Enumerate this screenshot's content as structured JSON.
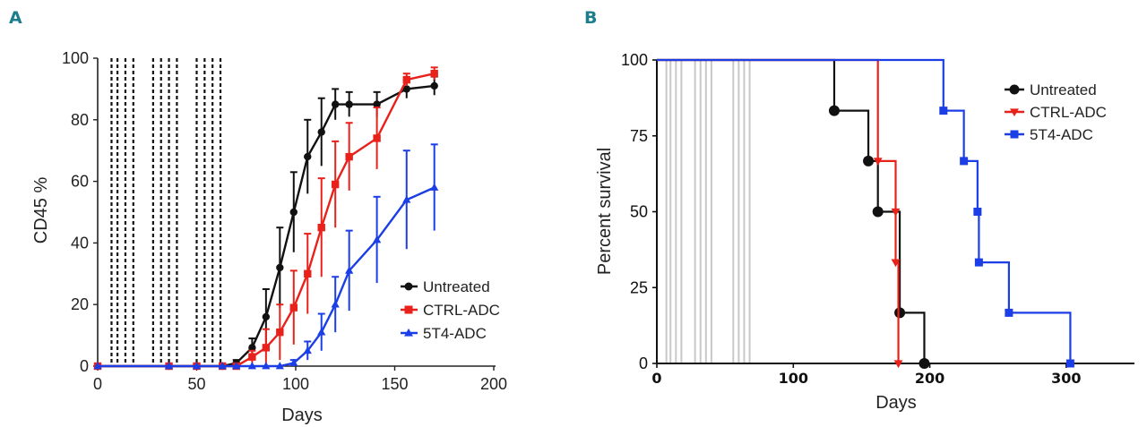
{
  "chart_data": [
    {
      "panel": "A",
      "type": "line",
      "title": "",
      "xlabel": "Days",
      "ylabel": "CD45 %",
      "xlim": [
        0,
        200
      ],
      "ylim": [
        0,
        100
      ],
      "xticks": [
        "0",
        "50",
        "100",
        "150",
        "200"
      ],
      "yticks": [
        "0",
        "20",
        "40",
        "60",
        "80",
        "100"
      ],
      "treatment_days": [
        7,
        10,
        14,
        18,
        28,
        32,
        36,
        40,
        50,
        54,
        58,
        62
      ],
      "legend_position": "bottom-right",
      "series": [
        {
          "name": "Untreated",
          "color": "#111111",
          "marker": "circle",
          "x": [
            0,
            36,
            50,
            63,
            70,
            78,
            85,
            92,
            99,
            106,
            113,
            120,
            127,
            141,
            156,
            170
          ],
          "y": [
            0,
            0,
            0,
            0,
            1,
            6,
            16,
            32,
            50,
            68,
            76,
            85,
            85,
            85,
            90,
            91
          ],
          "err": [
            0,
            0,
            0,
            0,
            1,
            3,
            9,
            13,
            13,
            12,
            11,
            5,
            4,
            4,
            3,
            3
          ]
        },
        {
          "name": "CTRL-ADC",
          "color": "#e8221b",
          "marker": "square",
          "x": [
            0,
            36,
            50,
            63,
            70,
            78,
            85,
            92,
            99,
            106,
            113,
            120,
            127,
            141,
            156,
            170
          ],
          "y": [
            0,
            0,
            0,
            0,
            0,
            3,
            6,
            11,
            19,
            30,
            45,
            59,
            68,
            74,
            93,
            95
          ],
          "err": [
            0,
            0,
            0,
            0,
            0,
            2,
            6,
            9,
            12,
            13,
            16,
            14,
            11,
            10,
            2,
            2
          ]
        },
        {
          "name": "5T4-ADC",
          "color": "#1b3ee6",
          "marker": "triangle",
          "x": [
            0,
            36,
            50,
            63,
            70,
            78,
            85,
            92,
            99,
            106,
            113,
            120,
            127,
            141,
            156,
            170
          ],
          "y": [
            0,
            0,
            0,
            0,
            0,
            0,
            0,
            0,
            1,
            5,
            11,
            20,
            31,
            41,
            54,
            58
          ],
          "err": [
            0,
            0,
            0,
            0,
            0,
            0,
            0,
            0,
            1,
            3,
            6,
            9,
            13,
            14,
            16,
            14
          ]
        }
      ]
    },
    {
      "panel": "B",
      "type": "line",
      "subtype": "kaplan-meier",
      "title": "",
      "xlabel": "Days",
      "ylabel": "Percent survival",
      "xlim": [
        0,
        350
      ],
      "ylim": [
        0,
        100
      ],
      "xticks": [
        "0",
        "100",
        "200",
        "300"
      ],
      "yticks": [
        "0",
        "25",
        "50",
        "75",
        "100"
      ],
      "treatment_days": [
        7,
        10,
        14,
        18,
        28,
        32,
        36,
        40,
        56,
        60,
        64,
        68
      ],
      "legend_position": "top-right",
      "series": [
        {
          "name": "Untreated",
          "color": "#111111",
          "marker": "circle",
          "steps": [
            [
              0,
              100
            ],
            [
              130,
              83.3
            ],
            [
              155,
              66.7
            ],
            [
              162,
              50
            ],
            [
              178,
              16.7
            ],
            [
              196,
              0
            ]
          ],
          "markers": [
            [
              130,
              83.3
            ],
            [
              155,
              66.7
            ],
            [
              162,
              50
            ],
            [
              178,
              16.7
            ],
            [
              196,
              0
            ]
          ]
        },
        {
          "name": "CTRL-ADC",
          "color": "#e8221b",
          "marker": "triangle-down",
          "steps": [
            [
              0,
              100
            ],
            [
              162,
              66.7
            ],
            [
              175,
              50
            ],
            [
              175,
              33.3
            ],
            [
              177,
              0
            ]
          ],
          "markers": [
            [
              162,
              66.7
            ],
            [
              175,
              50
            ],
            [
              175,
              33.3
            ],
            [
              177,
              0
            ]
          ]
        },
        {
          "name": "5T4-ADC",
          "color": "#1b3ee6",
          "marker": "square",
          "steps": [
            [
              0,
              100
            ],
            [
              210,
              83.3
            ],
            [
              225,
              66.7
            ],
            [
              235,
              50
            ],
            [
              236,
              33.3
            ],
            [
              258,
              16.7
            ],
            [
              303,
              0
            ]
          ],
          "markers": [
            [
              210,
              83.3
            ],
            [
              225,
              66.7
            ],
            [
              235,
              50
            ],
            [
              236,
              33.3
            ],
            [
              258,
              16.7
            ],
            [
              303,
              0
            ]
          ]
        }
      ]
    }
  ]
}
